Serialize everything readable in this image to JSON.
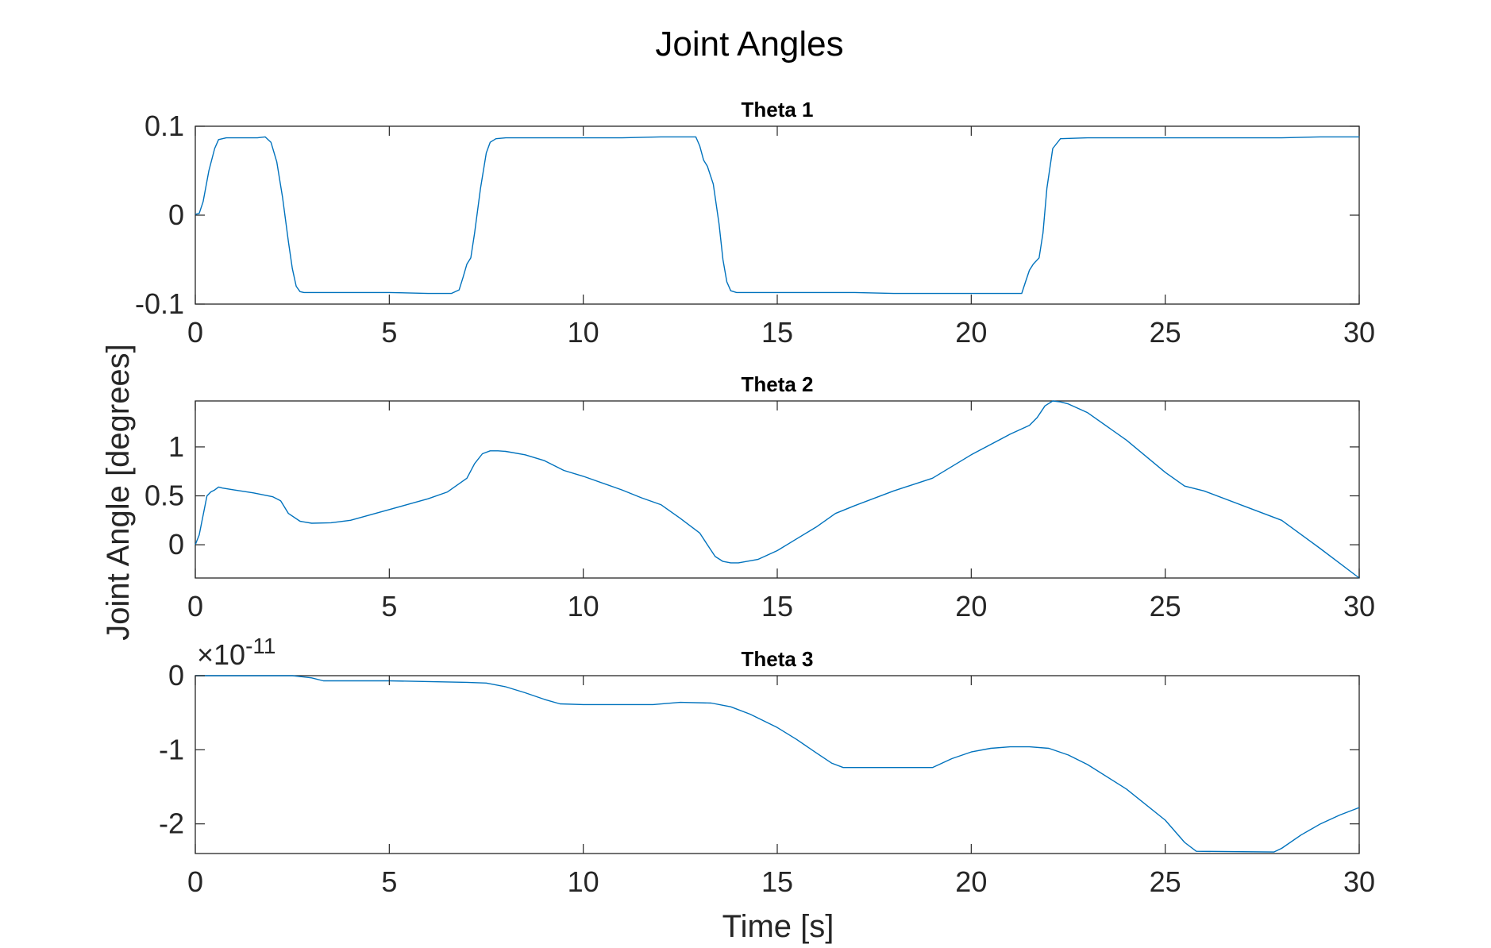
{
  "figure": {
    "title": "Joint Angles",
    "xlabel": "Time [s]",
    "ylabel": "Joint Angle [degrees]"
  },
  "colors": {
    "line": "#0072BD",
    "axes": "#262626",
    "background": "#ffffff"
  },
  "chart_data": [
    {
      "type": "line",
      "title": "Theta 1",
      "xlim": [
        0,
        30
      ],
      "ylim": [
        -0.1,
        0.1
      ],
      "xticks": [
        0,
        5,
        10,
        15,
        20,
        25,
        30
      ],
      "xtick_labels": [
        "0",
        "5",
        "10",
        "15",
        "20",
        "25",
        "30"
      ],
      "yticks": [
        -0.1,
        0,
        0.1
      ],
      "ytick_labels": [
        "-0.1",
        "0",
        "0.1"
      ],
      "grid": false,
      "x": [
        0,
        0.1,
        0.2,
        0.35,
        0.5,
        0.6,
        0.8,
        1.2,
        1.6,
        1.8,
        1.95,
        2.1,
        2.25,
        2.4,
        2.5,
        2.6,
        2.7,
        2.8,
        3,
        4,
        5,
        6,
        6.6,
        6.8,
        6.9,
        7.0,
        7.1,
        7.2,
        7.35,
        7.5,
        7.6,
        7.75,
        8,
        9,
        10,
        11,
        12,
        12.9,
        13.0,
        13.1,
        13.2,
        13.35,
        13.5,
        13.6,
        13.7,
        13.8,
        13.95,
        14.2,
        15,
        16,
        17,
        18,
        19,
        20,
        21,
        21.3,
        21.4,
        21.5,
        21.6,
        21.75,
        21.85,
        21.95,
        22.1,
        22.3,
        23,
        24,
        25,
        26,
        27,
        28,
        29,
        30
      ],
      "y": [
        0.001,
        0.002,
        0.015,
        0.05,
        0.075,
        0.085,
        0.087,
        0.087,
        0.087,
        0.088,
        0.082,
        0.06,
        0.02,
        -0.03,
        -0.06,
        -0.08,
        -0.086,
        -0.087,
        -0.087,
        -0.087,
        -0.087,
        -0.088,
        -0.088,
        -0.084,
        -0.07,
        -0.055,
        -0.048,
        -0.02,
        0.03,
        0.07,
        0.082,
        0.086,
        0.087,
        0.087,
        0.087,
        0.087,
        0.088,
        0.088,
        0.078,
        0.062,
        0.055,
        0.035,
        -0.01,
        -0.05,
        -0.075,
        -0.085,
        -0.087,
        -0.087,
        -0.087,
        -0.087,
        -0.087,
        -0.088,
        -0.088,
        -0.088,
        -0.088,
        -0.088,
        -0.075,
        -0.062,
        -0.055,
        -0.048,
        -0.02,
        0.03,
        0.075,
        0.086,
        0.087,
        0.087,
        0.087,
        0.087,
        0.087,
        0.087,
        0.088,
        0.088
      ]
    },
    {
      "type": "line",
      "title": "Theta 2",
      "xlim": [
        0,
        30
      ],
      "ylim": [
        -0.34,
        1.47
      ],
      "xticks": [
        0,
        5,
        10,
        15,
        20,
        25,
        30
      ],
      "xtick_labels": [
        "0",
        "5",
        "10",
        "15",
        "20",
        "25",
        "30"
      ],
      "yticks": [
        0,
        0.5,
        1
      ],
      "ytick_labels": [
        "0",
        "0.5",
        "1"
      ],
      "grid": false,
      "x": [
        0,
        0.1,
        0.2,
        0.3,
        0.4,
        0.5,
        0.6,
        0.7,
        1,
        1.5,
        2,
        2.2,
        2.4,
        2.7,
        3,
        3.5,
        4,
        5,
        6,
        6.5,
        7.0,
        7.2,
        7.4,
        7.6,
        7.8,
        8,
        8.5,
        9,
        9.5,
        10,
        11,
        11.5,
        12,
        12.5,
        13,
        13.2,
        13.4,
        13.6,
        13.8,
        14,
        14.5,
        15,
        15.5,
        16,
        16.5,
        17,
        18,
        19,
        20,
        21,
        21.5,
        21.7,
        21.9,
        22.1,
        22.3,
        22.5,
        23,
        24,
        25,
        25.5,
        26,
        27,
        28,
        29,
        30
      ],
      "y": [
        0,
        0.1,
        0.3,
        0.5,
        0.54,
        0.56,
        0.59,
        0.58,
        0.56,
        0.53,
        0.49,
        0.45,
        0.32,
        0.24,
        0.22,
        0.225,
        0.25,
        0.36,
        0.47,
        0.54,
        0.68,
        0.83,
        0.93,
        0.96,
        0.96,
        0.955,
        0.92,
        0.86,
        0.76,
        0.7,
        0.56,
        0.48,
        0.41,
        0.27,
        0.12,
        0.0,
        -0.12,
        -0.17,
        -0.185,
        -0.185,
        -0.15,
        -0.06,
        0.06,
        0.18,
        0.32,
        0.4,
        0.55,
        0.68,
        0.92,
        1.13,
        1.22,
        1.3,
        1.42,
        1.47,
        1.46,
        1.44,
        1.35,
        1.07,
        0.74,
        0.6,
        0.55,
        0.4,
        0.25,
        -0.04,
        -0.34
      ]
    },
    {
      "type": "line",
      "title": "Theta 3",
      "xlim": [
        0,
        30
      ],
      "ylim": [
        -2.4,
        0
      ],
      "exponent_label": "×10",
      "exponent_power": "-11",
      "xticks": [
        0,
        5,
        10,
        15,
        20,
        25,
        30
      ],
      "xtick_labels": [
        "0",
        "5",
        "10",
        "15",
        "20",
        "25",
        "30"
      ],
      "yticks": [
        -2,
        -1,
        0
      ],
      "ytick_labels": [
        "-2",
        "-1",
        "0"
      ],
      "grid": false,
      "x": [
        0,
        1,
        2,
        2.5,
        3,
        3.3,
        5,
        7,
        7.5,
        8,
        8.5,
        9,
        9.4,
        10,
        11.8,
        12.5,
        13.3,
        13.8,
        14.3,
        15,
        15.5,
        16,
        16.4,
        16.7,
        18,
        19,
        19.5,
        20,
        20.5,
        21,
        21.5,
        22,
        22.5,
        23,
        24,
        25,
        25.5,
        25.8,
        27.8,
        28,
        28.5,
        29,
        29.5,
        30
      ],
      "y": [
        0,
        0,
        0,
        0,
        -0.03,
        -0.07,
        -0.07,
        -0.09,
        -0.1,
        -0.15,
        -0.23,
        -0.32,
        -0.38,
        -0.39,
        -0.39,
        -0.36,
        -0.37,
        -0.42,
        -0.52,
        -0.7,
        -0.86,
        -1.04,
        -1.18,
        -1.24,
        -1.24,
        -1.24,
        -1.12,
        -1.03,
        -0.98,
        -0.96,
        -0.96,
        -0.98,
        -1.07,
        -1.2,
        -1.53,
        -1.95,
        -2.25,
        -2.37,
        -2.38,
        -2.33,
        -2.15,
        -2.0,
        -1.88,
        -1.78
      ]
    }
  ]
}
